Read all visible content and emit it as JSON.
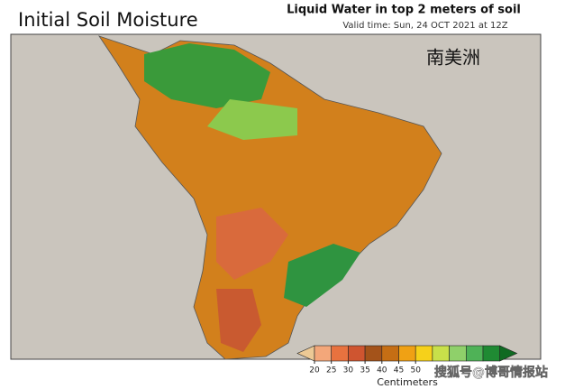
{
  "header": {
    "title": "Initial Soil Moisture",
    "subtitle": "Liquid Water in top 2 meters of soil",
    "valid_time": "Valid time: Sun, 24 OCT 2021 at 12Z"
  },
  "map": {
    "region_label": "南美洲"
  },
  "colorbar": {
    "ticks": [
      20,
      25,
      30,
      35,
      40,
      45,
      50
    ],
    "unit": "Centimeters",
    "low_color": "#ecc995",
    "high_color": "#0f6a22",
    "colors": [
      "#f3a77a",
      "#e8723f",
      "#cf5530",
      "#a4531a",
      "#c56e14",
      "#f0a114",
      "#f6d11a",
      "#c8e04a",
      "#8fd06a",
      "#4fb257",
      "#1f8a33"
    ]
  },
  "watermark": "搜狐号@博哥情报站"
}
